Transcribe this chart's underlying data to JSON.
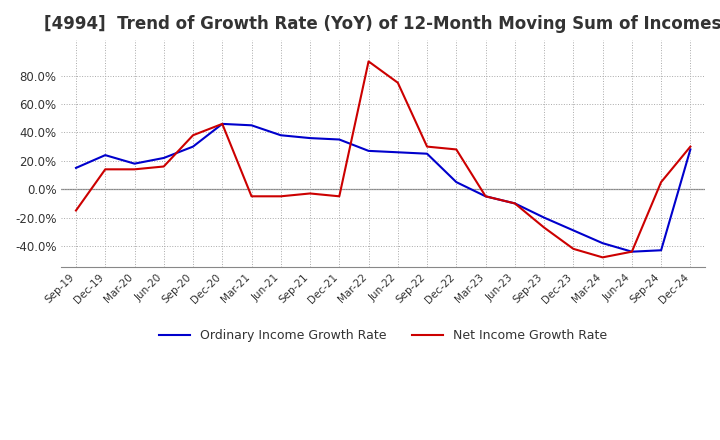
{
  "title": "[4994]  Trend of Growth Rate (YoY) of 12-Month Moving Sum of Incomes",
  "title_fontsize": 12,
  "ylim": [
    -55,
    105
  ],
  "yticks": [
    -40.0,
    -20.0,
    0.0,
    20.0,
    40.0,
    60.0,
    80.0
  ],
  "ytick_labels": [
    "-40.0%",
    "-20.0%",
    "0.0%",
    "20.0%",
    "40.0%",
    "60.0%",
    "80.0%"
  ],
  "xtick_labels": [
    "Sep-19",
    "Dec-19",
    "Mar-20",
    "Jun-20",
    "Sep-20",
    "Dec-20",
    "Mar-21",
    "Jun-21",
    "Sep-21",
    "Dec-21",
    "Mar-22",
    "Jun-22",
    "Sep-22",
    "Dec-22",
    "Mar-23",
    "Jun-23",
    "Sep-23",
    "Dec-23",
    "Mar-24",
    "Jun-24",
    "Sep-24",
    "Dec-24"
  ],
  "ordinary_color": "#0000CC",
  "net_color": "#CC0000",
  "background_color": "#FFFFFF",
  "grid_color": "#AAAAAA",
  "legend_ordinary": "Ordinary Income Growth Rate",
  "legend_net": "Net Income Growth Rate",
  "ordinary_income_growth": [
    15,
    24,
    18,
    22,
    30,
    46,
    45,
    38,
    36,
    35,
    27,
    26,
    25,
    5,
    -5,
    -10,
    -20,
    -29,
    -38,
    -44,
    -43,
    28
  ],
  "net_income_growth": [
    -15,
    14,
    14,
    16,
    38,
    46,
    -5,
    -5,
    -3,
    -5,
    90,
    75,
    30,
    28,
    -5,
    -10,
    -27,
    -42,
    -48,
    -44,
    5,
    30
  ]
}
